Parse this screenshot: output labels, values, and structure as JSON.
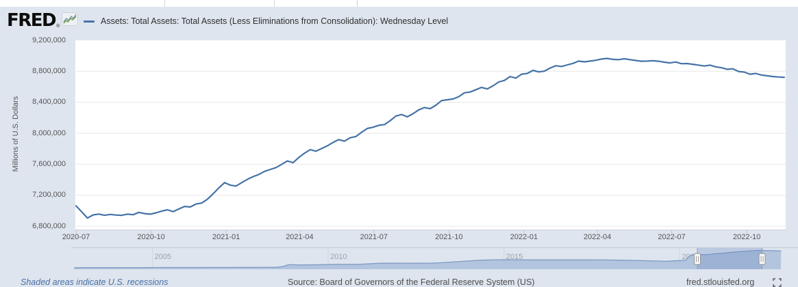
{
  "header": {
    "logo_text": "FRED",
    "logo_registered": "®",
    "legend_label": "Assets: Total Assets: Total Assets (Less Eliminations from Consolidation): Wednesday Level"
  },
  "colors": {
    "accent": "#4572a7",
    "page_bg": "#dee5ee",
    "plot_bg": "#ffffff",
    "gridline": "#e7e7e7",
    "axis_text": "#545454",
    "nav_fill": "#abbfda",
    "nav_line": "#7d9ac3",
    "nav_mask": "rgba(102,133,194,0.28)",
    "nav_label": "#9aa1ab",
    "link": "#4a6fa5",
    "footer_text": "#4d4d4d"
  },
  "chart_data": {
    "type": "line",
    "title": "Assets: Total Assets: Total Assets (Less Eliminations from Consolidation): Wednesday Level",
    "xlabel": "",
    "ylabel": "Millions of U.S. Dollars",
    "ylim": [
      6756000,
      9200000
    ],
    "grid": true,
    "legend_position": "top-left",
    "y_ticks": [
      {
        "label": "9,200,000",
        "value": 9200000
      },
      {
        "label": "8,800,000",
        "value": 8800000
      },
      {
        "label": "8,400,000",
        "value": 8400000
      },
      {
        "label": "8,000,000",
        "value": 8000000
      },
      {
        "label": "7,600,000",
        "value": 7600000
      },
      {
        "label": "7,200,000",
        "value": 7200000
      },
      {
        "label": "6,800,000",
        "value": 6800000
      }
    ],
    "x_ticks": [
      {
        "label": "2020-07",
        "date": "2020-07-01"
      },
      {
        "label": "2020-10",
        "date": "2020-10-01"
      },
      {
        "label": "2021-01",
        "date": "2021-01-01"
      },
      {
        "label": "2021-04",
        "date": "2021-04-01"
      },
      {
        "label": "2021-07",
        "date": "2021-07-01"
      },
      {
        "label": "2021-10",
        "date": "2021-10-01"
      },
      {
        "label": "2022-01",
        "date": "2022-01-01"
      },
      {
        "label": "2022-04",
        "date": "2022-04-01"
      },
      {
        "label": "2022-07",
        "date": "2022-07-01"
      },
      {
        "label": "2022-10",
        "date": "2022-10-01"
      }
    ],
    "series": {
      "name": "Assets: Total Assets: Total Assets (Less Eliminations from Consolidation): Wednesday Level",
      "unit": "Millions of U.S. Dollars",
      "points": [
        [
          "2020-07-01",
          7062000
        ],
        [
          "2020-07-08",
          6985000
        ],
        [
          "2020-07-15",
          6905000
        ],
        [
          "2020-07-22",
          6946000
        ],
        [
          "2020-07-29",
          6956000
        ],
        [
          "2020-08-05",
          6940000
        ],
        [
          "2020-08-12",
          6952000
        ],
        [
          "2020-08-19",
          6944000
        ],
        [
          "2020-08-26",
          6940000
        ],
        [
          "2020-09-02",
          6955000
        ],
        [
          "2020-09-09",
          6948000
        ],
        [
          "2020-09-16",
          6978000
        ],
        [
          "2020-09-23",
          6962000
        ],
        [
          "2020-09-30",
          6955000
        ],
        [
          "2020-10-07",
          6972000
        ],
        [
          "2020-10-14",
          6995000
        ],
        [
          "2020-10-21",
          7012000
        ],
        [
          "2020-10-28",
          6988000
        ],
        [
          "2020-11-04",
          7022000
        ],
        [
          "2020-11-11",
          7055000
        ],
        [
          "2020-11-18",
          7048000
        ],
        [
          "2020-11-25",
          7086000
        ],
        [
          "2020-12-02",
          7098000
        ],
        [
          "2020-12-09",
          7148000
        ],
        [
          "2020-12-16",
          7218000
        ],
        [
          "2020-12-23",
          7295000
        ],
        [
          "2020-12-30",
          7362000
        ],
        [
          "2021-01-06",
          7330000
        ],
        [
          "2021-01-13",
          7318000
        ],
        [
          "2021-01-20",
          7362000
        ],
        [
          "2021-01-27",
          7405000
        ],
        [
          "2021-02-03",
          7440000
        ],
        [
          "2021-02-10",
          7468000
        ],
        [
          "2021-02-17",
          7508000
        ],
        [
          "2021-02-24",
          7532000
        ],
        [
          "2021-03-03",
          7556000
        ],
        [
          "2021-03-10",
          7598000
        ],
        [
          "2021-03-17",
          7642000
        ],
        [
          "2021-03-24",
          7620000
        ],
        [
          "2021-03-31",
          7688000
        ],
        [
          "2021-04-07",
          7742000
        ],
        [
          "2021-04-14",
          7788000
        ],
        [
          "2021-04-21",
          7768000
        ],
        [
          "2021-04-28",
          7802000
        ],
        [
          "2021-05-05",
          7838000
        ],
        [
          "2021-05-12",
          7882000
        ],
        [
          "2021-05-19",
          7918000
        ],
        [
          "2021-05-26",
          7898000
        ],
        [
          "2021-06-02",
          7942000
        ],
        [
          "2021-06-09",
          7958000
        ],
        [
          "2021-06-16",
          8012000
        ],
        [
          "2021-06-23",
          8062000
        ],
        [
          "2021-06-30",
          8078000
        ],
        [
          "2021-07-07",
          8102000
        ],
        [
          "2021-07-14",
          8112000
        ],
        [
          "2021-07-21",
          8162000
        ],
        [
          "2021-07-28",
          8222000
        ],
        [
          "2021-08-04",
          8242000
        ],
        [
          "2021-08-11",
          8212000
        ],
        [
          "2021-08-18",
          8252000
        ],
        [
          "2021-08-25",
          8302000
        ],
        [
          "2021-09-01",
          8332000
        ],
        [
          "2021-09-08",
          8318000
        ],
        [
          "2021-09-15",
          8362000
        ],
        [
          "2021-09-22",
          8422000
        ],
        [
          "2021-09-29",
          8432000
        ],
        [
          "2021-10-06",
          8442000
        ],
        [
          "2021-10-13",
          8472000
        ],
        [
          "2021-10-20",
          8522000
        ],
        [
          "2021-10-27",
          8532000
        ],
        [
          "2021-11-03",
          8562000
        ],
        [
          "2021-11-10",
          8592000
        ],
        [
          "2021-11-17",
          8572000
        ],
        [
          "2021-11-24",
          8612000
        ],
        [
          "2021-12-01",
          8662000
        ],
        [
          "2021-12-08",
          8682000
        ],
        [
          "2021-12-15",
          8732000
        ],
        [
          "2021-12-22",
          8712000
        ],
        [
          "2021-12-29",
          8762000
        ],
        [
          "2022-01-05",
          8772000
        ],
        [
          "2022-01-12",
          8812000
        ],
        [
          "2022-01-19",
          8792000
        ],
        [
          "2022-01-26",
          8802000
        ],
        [
          "2022-02-02",
          8842000
        ],
        [
          "2022-02-09",
          8872000
        ],
        [
          "2022-02-16",
          8862000
        ],
        [
          "2022-02-23",
          8882000
        ],
        [
          "2022-03-02",
          8902000
        ],
        [
          "2022-03-09",
          8932000
        ],
        [
          "2022-03-16",
          8922000
        ],
        [
          "2022-03-23",
          8932000
        ],
        [
          "2022-03-30",
          8942000
        ],
        [
          "2022-04-06",
          8958000
        ],
        [
          "2022-04-13",
          8966000
        ],
        [
          "2022-04-20",
          8954000
        ],
        [
          "2022-04-27",
          8950000
        ],
        [
          "2022-05-04",
          8962000
        ],
        [
          "2022-05-11",
          8950000
        ],
        [
          "2022-05-18",
          8940000
        ],
        [
          "2022-05-25",
          8930000
        ],
        [
          "2022-06-01",
          8932000
        ],
        [
          "2022-06-08",
          8936000
        ],
        [
          "2022-06-15",
          8930000
        ],
        [
          "2022-06-22",
          8918000
        ],
        [
          "2022-06-29",
          8908000
        ],
        [
          "2022-07-06",
          8920000
        ],
        [
          "2022-07-13",
          8898000
        ],
        [
          "2022-07-20",
          8900000
        ],
        [
          "2022-07-27",
          8890000
        ],
        [
          "2022-08-03",
          8880000
        ],
        [
          "2022-08-10",
          8868000
        ],
        [
          "2022-08-17",
          8880000
        ],
        [
          "2022-08-24",
          8858000
        ],
        [
          "2022-08-31",
          8846000
        ],
        [
          "2022-09-07",
          8826000
        ],
        [
          "2022-09-14",
          8832000
        ],
        [
          "2022-09-21",
          8798000
        ],
        [
          "2022-09-28",
          8790000
        ],
        [
          "2022-10-05",
          8762000
        ],
        [
          "2022-10-12",
          8772000
        ],
        [
          "2022-10-19",
          8752000
        ],
        [
          "2022-10-26",
          8742000
        ],
        [
          "2022-11-02",
          8732000
        ],
        [
          "2022-11-09",
          8726000
        ],
        [
          "2022-11-16",
          8722000
        ]
      ]
    }
  },
  "navigator": {
    "year_ticks": [
      {
        "label": "2005",
        "year": 2005
      },
      {
        "label": "2010",
        "year": 2010
      },
      {
        "label": "2015",
        "year": 2015
      },
      {
        "label": "2020",
        "year": 2020
      }
    ],
    "range_years": [
      2002.75,
      2022.88
    ],
    "selection_years": [
      2020.5,
      2022.34
    ],
    "points": [
      [
        2002.78,
        730
      ],
      [
        2003.2,
        745
      ],
      [
        2003.7,
        755
      ],
      [
        2004.2,
        770
      ],
      [
        2004.7,
        790
      ],
      [
        2005.2,
        800
      ],
      [
        2005.7,
        815
      ],
      [
        2006.2,
        830
      ],
      [
        2006.7,
        850
      ],
      [
        2007.2,
        860
      ],
      [
        2007.7,
        880
      ],
      [
        2008.2,
        900
      ],
      [
        2008.55,
        910
      ],
      [
        2008.7,
        1250
      ],
      [
        2008.85,
        2100
      ],
      [
        2008.95,
        2250
      ],
      [
        2009.1,
        2070
      ],
      [
        2009.3,
        2060
      ],
      [
        2009.6,
        2120
      ],
      [
        2009.9,
        2230
      ],
      [
        2010.2,
        2310
      ],
      [
        2010.5,
        2340
      ],
      [
        2010.8,
        2300
      ],
      [
        2011.0,
        2430
      ],
      [
        2011.3,
        2700
      ],
      [
        2011.5,
        2860
      ],
      [
        2011.8,
        2880
      ],
      [
        2012.2,
        2900
      ],
      [
        2012.6,
        2860
      ],
      [
        2012.9,
        2900
      ],
      [
        2013.2,
        3080
      ],
      [
        2013.5,
        3420
      ],
      [
        2013.8,
        3760
      ],
      [
        2014.1,
        4060
      ],
      [
        2014.4,
        4320
      ],
      [
        2014.7,
        4470
      ],
      [
        2015.0,
        4500
      ],
      [
        2015.5,
        4470
      ],
      [
        2016.0,
        4480
      ],
      [
        2016.5,
        4460
      ],
      [
        2017.0,
        4450
      ],
      [
        2017.5,
        4470
      ],
      [
        2017.9,
        4420
      ],
      [
        2018.3,
        4340
      ],
      [
        2018.7,
        4210
      ],
      [
        2019.0,
        4060
      ],
      [
        2019.3,
        3940
      ],
      [
        2019.6,
        3780
      ],
      [
        2019.8,
        3960
      ],
      [
        2020.0,
        4150
      ],
      [
        2020.17,
        4310
      ],
      [
        2020.25,
        5960
      ],
      [
        2020.33,
        6620
      ],
      [
        2020.42,
        7010
      ],
      [
        2020.5,
        7060
      ],
      [
        2020.58,
        6940
      ],
      [
        2020.7,
        6980
      ],
      [
        2020.85,
        7050
      ],
      [
        2021.0,
        7360
      ],
      [
        2021.25,
        7690
      ],
      [
        2021.5,
        8080
      ],
      [
        2021.75,
        8440
      ],
      [
        2022.0,
        8760
      ],
      [
        2022.2,
        8940
      ],
      [
        2022.3,
        8960
      ],
      [
        2022.5,
        8930
      ],
      [
        2022.7,
        8830
      ],
      [
        2022.88,
        8700
      ]
    ]
  },
  "footer": {
    "recessions_note": "Shaded areas indicate U.S. recessions",
    "source": "Source: Board of Governors of the Federal Reserve System (US)",
    "site": "fred.stlouisfed.org"
  }
}
